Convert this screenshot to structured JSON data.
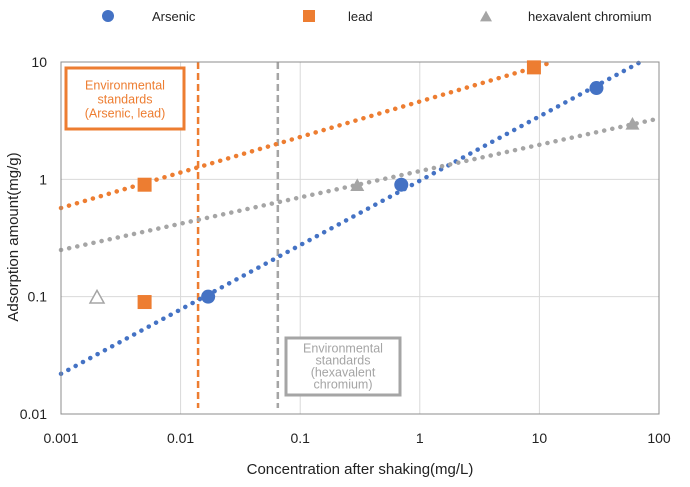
{
  "chart_data": {
    "type": "scatter",
    "x_scale": "log",
    "y_scale": "log",
    "xlabel": "Concentration after shaking(mg/L)",
    "ylabel": "Adsorption amount(mg/g)",
    "xlim": [
      0.001,
      100
    ],
    "ylim": [
      0.01,
      10
    ],
    "x_ticks": [
      0.001,
      0.01,
      0.1,
      1,
      10,
      100
    ],
    "x_tick_labels": [
      "0.001",
      "0.01",
      "0.1",
      "1",
      "10",
      "100"
    ],
    "y_ticks": [
      0.01,
      0.1,
      1,
      10
    ],
    "y_tick_labels": [
      "0.01",
      "0.1",
      "1",
      "10"
    ],
    "grid": true,
    "legend_position": "top",
    "series": [
      {
        "name": "Arsenic",
        "marker": "circle",
        "color": "#4472C4",
        "points": [
          {
            "x": 0.017,
            "y": 0.1
          },
          {
            "x": 0.7,
            "y": 0.9
          },
          {
            "x": 30,
            "y": 6
          }
        ],
        "trendline": {
          "x": [
            0.001,
            70
          ],
          "y": [
            0.022,
            10
          ]
        }
      },
      {
        "name": "lead",
        "marker": "square",
        "color": "#ED7D31",
        "points": [
          {
            "x": 0.005,
            "y": 0.09
          },
          {
            "x": 0.005,
            "y": 0.9
          },
          {
            "x": 9,
            "y": 9
          }
        ],
        "trendline": {
          "x": [
            0.001,
            13
          ],
          "y": [
            0.57,
            10
          ]
        }
      },
      {
        "name": "hexavalent chromium",
        "marker": "triangle",
        "color": "#A5A5A5",
        "points": [
          {
            "x": 0.002,
            "y": 0.1,
            "hollow": true
          },
          {
            "x": 0.3,
            "y": 0.9
          },
          {
            "x": 60,
            "y": 3
          }
        ],
        "trendline": {
          "x": [
            0.001,
            100
          ],
          "y": [
            0.25,
            3.3
          ]
        }
      }
    ],
    "annotations": [
      {
        "name": "standards-arsenic-lead",
        "lines": [
          "Environmental",
          "standards",
          "(Arsenic, lead)"
        ],
        "color": "#ED7D31",
        "vline_x": 0.014
      },
      {
        "name": "standards-hexavalent-chromium",
        "lines": [
          "Environmental",
          "standards",
          "(hexavalent",
          "chromium)"
        ],
        "color": "#A5A5A5",
        "vline_x": 0.065
      }
    ]
  }
}
